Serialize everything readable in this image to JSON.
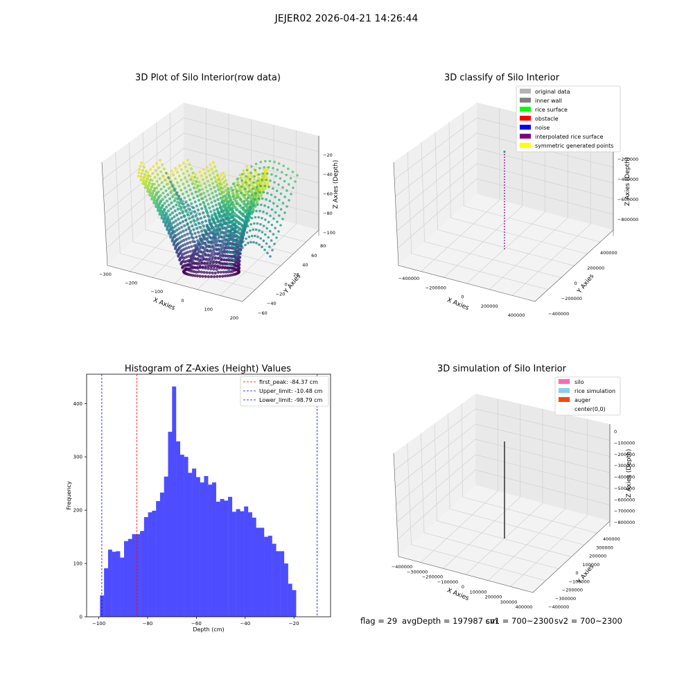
{
  "suptitle": "JEJER02 2026-04-21 14:26:44",
  "footer": {
    "flag": "flag = 29",
    "avg_depth": "avgDepth = 197987 cm",
    "sv1": "sv1 = 700~2300",
    "sv2": "sv2 = 700~2300"
  },
  "chart_data": [
    {
      "type": "scatter3d",
      "title": "3D Plot of Silo Interior(row data)",
      "xlabel": "X Axies",
      "ylabel": "Y Axies",
      "zlabel": "Z Axies (Depth)",
      "xticks": [
        "−300",
        "−200",
        "−100",
        "0",
        "100",
        "200"
      ],
      "yticks": [
        "−60",
        "−40",
        "−20",
        "0",
        "20",
        "40",
        "60",
        "80"
      ],
      "zticks": [
        "−100",
        "−80",
        "−60",
        "−40",
        "−20"
      ],
      "xlim": [
        -300,
        200
      ],
      "ylim": [
        -60,
        80
      ],
      "zlim": [
        -100,
        -10
      ],
      "colormap": "viridis",
      "grid": true
    },
    {
      "type": "scatter3d",
      "title": "3D classify of Silo Interior",
      "xlabel": "X Axies",
      "ylabel": "Y Axies",
      "zlabel": "Z Axies (Depth)",
      "xticks": [
        "−400000",
        "−200000",
        "0",
        "200000",
        "400000"
      ],
      "yticks": [
        "−400000",
        "−200000",
        "0",
        "200000",
        "400000"
      ],
      "zticks": [
        "−800000",
        "−600000",
        "−400000",
        "−200000",
        "0"
      ],
      "legend_position": "top-right",
      "legend": [
        {
          "label": "original data",
          "color": "#b3b3b3"
        },
        {
          "label": "inner wall",
          "color": "#808080"
        },
        {
          "label": "rice surface",
          "color": "#00ff00"
        },
        {
          "label": "obstacle",
          "color": "#ff0000"
        },
        {
          "label": "noise",
          "color": "#0000ff"
        },
        {
          "label": "interpolated rice surface",
          "color": "#800080"
        },
        {
          "label": "symmetric generated points",
          "color": "#ffff00"
        }
      ],
      "grid": true
    },
    {
      "type": "bar",
      "title": "Histogram of Z-Axies (Height) Values",
      "xlabel": "Depth (cm)",
      "ylabel": "Frequency",
      "xlim": [
        -105,
        -5
      ],
      "ylim": [
        0,
        455
      ],
      "xticks": [
        "−100",
        "−80",
        "−60",
        "−40",
        "−20"
      ],
      "yticks": [
        "0",
        "100",
        "200",
        "300",
        "400"
      ],
      "bar_color": "#4d4dff",
      "bin_start": -99.5,
      "bin_width": 1.64,
      "values": [
        40,
        91,
        126,
        122,
        123,
        111,
        142,
        146,
        155,
        155,
        161,
        187,
        196,
        199,
        217,
        233,
        263,
        347,
        432,
        329,
        304,
        300,
        270,
        278,
        262,
        252,
        264,
        248,
        252,
        216,
        221,
        218,
        225,
        197,
        202,
        198,
        207,
        196,
        186,
        167,
        167,
        150,
        152,
        137,
        123,
        123,
        100,
        62,
        50
      ],
      "lines": [
        {
          "label": "first_peak: -84.37 cm",
          "x": -84.37,
          "color": "#ff0000"
        },
        {
          "label": "Upper_limit: -10.48 cm",
          "x": -10.48,
          "color": "#0000ff"
        },
        {
          "label": "Lower_limit: -98.79 cm",
          "x": -98.79,
          "color": "#0000ff"
        }
      ],
      "legend_position": "top-right"
    },
    {
      "type": "line3d",
      "title": "3D simulation of Silo Interior",
      "xlabel": "X Axies",
      "ylabel": "Y Axies",
      "zlabel": "Z Axies (Depth)",
      "xticks": [
        "−400000",
        "−300000",
        "−200000",
        "−100000",
        "0",
        "100000",
        "200000",
        "300000",
        "400000"
      ],
      "yticks": [
        "−400000",
        "−300000",
        "−200000",
        "−100000",
        "0",
        "100000",
        "200000",
        "300000",
        "400000"
      ],
      "zticks": [
        "−800000",
        "−700000",
        "−600000",
        "−500000",
        "−400000",
        "−300000",
        "−200000",
        "−100000",
        "0"
      ],
      "legend_position": "top-right",
      "legend": [
        {
          "label": "silo",
          "color": "#ff69b4"
        },
        {
          "label": "rice simulation",
          "color": "#87ceeb"
        },
        {
          "label": "auger",
          "color": "#ff4500"
        },
        {
          "label": "center(0,0)",
          "color": "#ffffff"
        }
      ],
      "grid": true
    }
  ]
}
